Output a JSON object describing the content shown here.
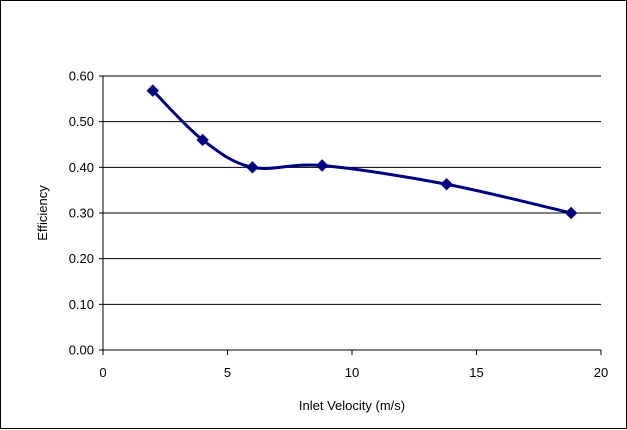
{
  "chart_data": {
    "type": "line",
    "title": "",
    "xlabel": "Inlet Velocity (m/s)",
    "ylabel": "Efficiency",
    "xlim": [
      0,
      20
    ],
    "ylim": [
      0,
      0.6
    ],
    "x_ticks": [
      "0",
      "5",
      "10",
      "15",
      "20"
    ],
    "y_ticks": [
      "0.00",
      "0.10",
      "0.20",
      "0.30",
      "0.40",
      "0.50",
      "0.60"
    ],
    "grid": "horizontal",
    "legend": "none",
    "smooth": true,
    "series": [
      {
        "color": "#000080",
        "marker": "diamond",
        "points": [
          {
            "x": 2.0,
            "y": 0.568
          },
          {
            "x": 4.0,
            "y": 0.46
          },
          {
            "x": 6.0,
            "y": 0.4
          },
          {
            "x": 8.8,
            "y": 0.404
          },
          {
            "x": 13.8,
            "y": 0.363
          },
          {
            "x": 18.8,
            "y": 0.3
          }
        ]
      }
    ]
  }
}
